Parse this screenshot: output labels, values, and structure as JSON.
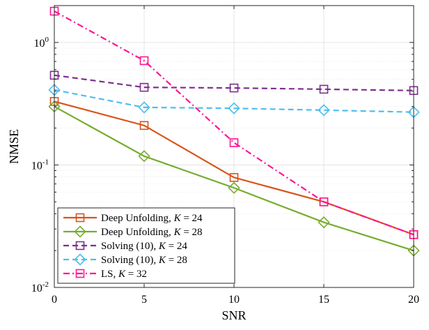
{
  "chart_data": {
    "type": "line",
    "xlabel": "SNR",
    "ylabel": "NMSE",
    "x": [
      0,
      5,
      10,
      15,
      20
    ],
    "xlim": [
      0,
      20
    ],
    "ylim": [
      0.01,
      2
    ],
    "yscale": "log",
    "grid": true,
    "legend_position": "bottom-left",
    "x_ticks": [
      "0",
      "5",
      "10",
      "15",
      "20"
    ],
    "y_ticks": [
      {
        "value": 1,
        "base": "10",
        "exp": "0"
      },
      {
        "value": 0.1,
        "base": "10",
        "exp": "-1"
      },
      {
        "value": 0.01,
        "base": "10",
        "exp": "-2"
      }
    ],
    "series": [
      {
        "name_prefix": "Deep Unfolding, ",
        "param": "K",
        "param_value": " = 24",
        "color": "#d95319",
        "dash": "solid",
        "marker": "square",
        "values": [
          0.33,
          0.21,
          0.079,
          0.05,
          0.027
        ]
      },
      {
        "name_prefix": "Deep Unfolding, ",
        "param": "K",
        "param_value": " = 28",
        "color": "#77ac30",
        "dash": "solid",
        "marker": "diamond",
        "values": [
          0.3,
          0.118,
          0.065,
          0.034,
          0.02
        ]
      },
      {
        "name_prefix": "Solving (10), ",
        "param": "K",
        "param_value": " = 24",
        "color": "#7e2f8e",
        "dash": "dashed",
        "marker": "square",
        "values": [
          0.54,
          0.43,
          0.425,
          0.415,
          0.405
        ]
      },
      {
        "name_prefix": "Solving (10), ",
        "param": "K",
        "param_value": " = 28",
        "color": "#4dbeee",
        "dash": "dashed",
        "marker": "diamond",
        "values": [
          0.41,
          0.295,
          0.29,
          0.28,
          0.27
        ]
      },
      {
        "name_prefix": "LS, ",
        "param": "K",
        "param_value": " = 32",
        "color": "#ff1493",
        "dash": "dashdot",
        "marker": "square",
        "values": [
          1.8,
          0.71,
          0.152,
          0.05,
          0.027
        ]
      }
    ]
  }
}
